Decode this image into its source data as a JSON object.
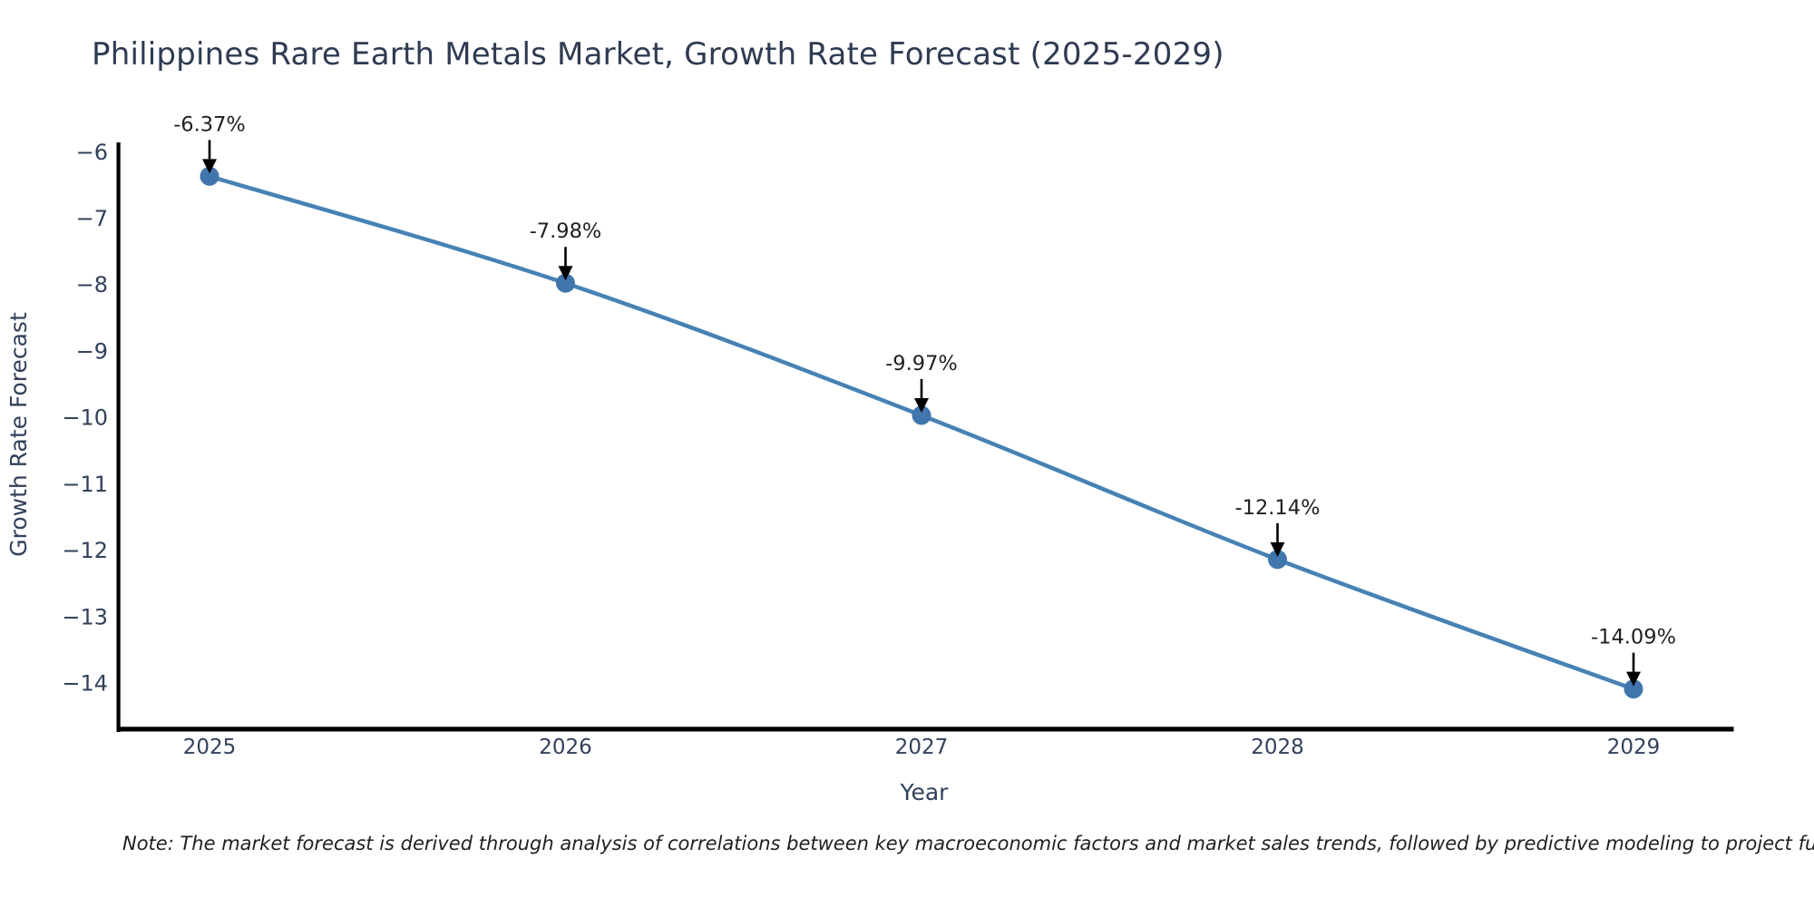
{
  "header": {
    "title": "Philippines Rare Earth Metals Market, Growth Rate Forecast (2025-2029)"
  },
  "footnote": {
    "text": "Note: The market forecast is derived through analysis of correlations between key macroeconomic factors and market sales trends, followed by predictive modeling to project future sales"
  },
  "colors": {
    "line": "#4682b4",
    "marker_fill": "#4076ac",
    "axis": "#000000",
    "tick_text": "#31415a",
    "title_text": "#2f3b52",
    "annotation_text": "#1f1f1f",
    "arrow": "#000000",
    "background": "#ffffff"
  },
  "chart_data": {
    "type": "line",
    "title": "Philippines Rare Earth Metals Market, Growth Rate Forecast (2025-2029)",
    "xlabel": "Year",
    "ylabel": "Growth Rate Forecast",
    "x": [
      2025,
      2026,
      2027,
      2028,
      2029
    ],
    "x_tick_labels": [
      "2025",
      "2026",
      "2027",
      "2028",
      "2029"
    ],
    "series": [
      {
        "name": "Growth Rate Forecast",
        "values": [
          -6.37,
          -7.98,
          -9.97,
          -12.14,
          -14.09
        ],
        "point_labels": [
          "-6.37%",
          "-7.98%",
          "-9.97%",
          "-12.14%",
          "-14.09%"
        ]
      }
    ],
    "y_ticks": [
      -6,
      -7,
      -8,
      -9,
      -10,
      -11,
      -12,
      -13,
      -14
    ],
    "y_tick_labels": [
      "−6",
      "−7",
      "−8",
      "−9",
      "−10",
      "−11",
      "−12",
      "−13",
      "−14"
    ],
    "ylim": [
      -14.73,
      -5.86
    ],
    "grid": false,
    "legend": "none",
    "line_shape": "spline",
    "annotations": "value label with downward arrow above each data point"
  }
}
